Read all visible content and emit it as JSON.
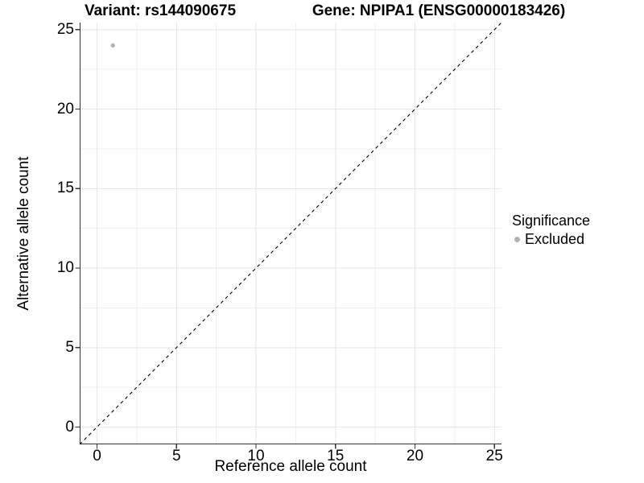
{
  "figure": {
    "variant_title": "Variant: rs144090675",
    "gene_title": "Gene: NPIPA1 (ENSG00000183426)"
  },
  "chart_data": {
    "type": "scatter",
    "xlabel": "Reference allele count",
    "ylabel": "Alternative allele count",
    "xlim": [
      0,
      25
    ],
    "ylim": [
      0,
      25
    ],
    "x_ticks": [
      0,
      5,
      10,
      15,
      20,
      25
    ],
    "y_ticks": [
      0,
      5,
      10,
      15,
      20,
      25
    ],
    "grid": {
      "major_step": 5,
      "minor_step": 2.5,
      "grid_on": true
    },
    "points": [
      {
        "x": 1,
        "y": 24,
        "label": "Excluded"
      }
    ],
    "reference_line": {
      "type": "identity y=x",
      "style": "dashed"
    },
    "legend": {
      "title": "Significance",
      "position": "right",
      "items": [
        {
          "label": "Excluded",
          "color": "#b4b4b4",
          "marker": "circle"
        }
      ]
    }
  },
  "colors": {
    "background": "#ffffff",
    "point": "#b4b4b4",
    "grid_major": "#e6e6e6",
    "grid_minor": "#f0f0f0",
    "axis_line": "#333333",
    "dashed_line": "#000000",
    "text": "#000000"
  }
}
